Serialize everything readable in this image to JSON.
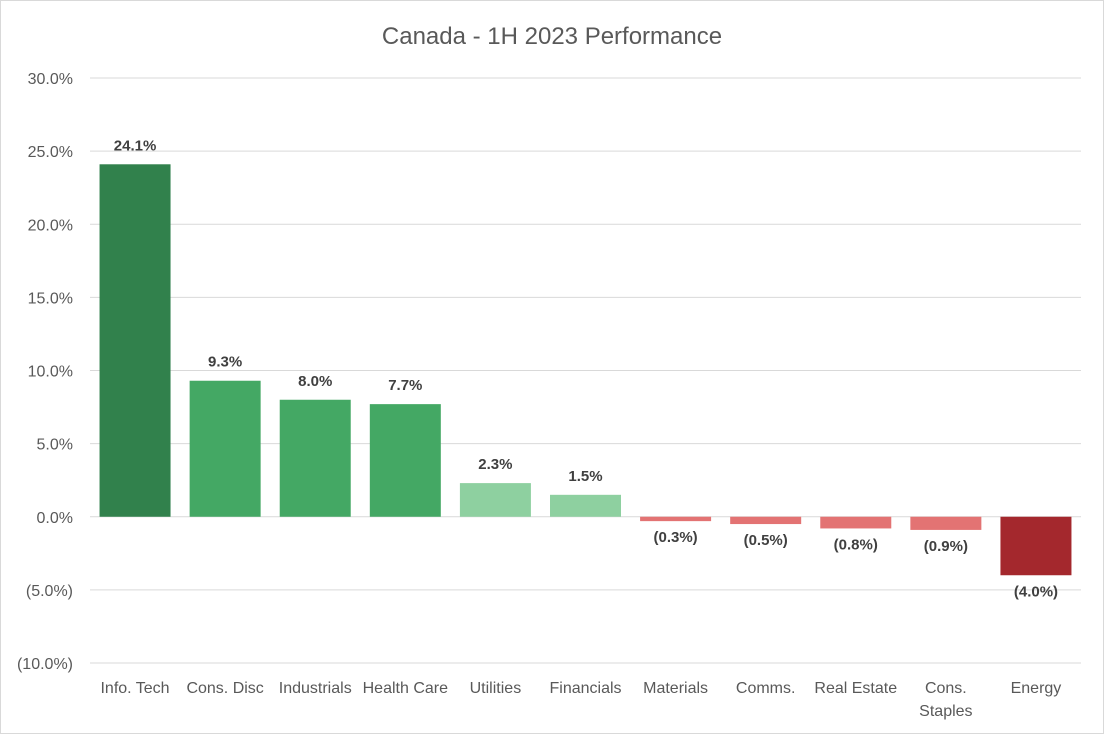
{
  "chart_data": {
    "type": "bar",
    "title": "Canada - 1H 2023 Performance",
    "xlabel": "",
    "ylabel": "",
    "ylim": [
      -10.0,
      30.0
    ],
    "ytick_step": 5.0,
    "yticks": [
      "(10.0%)",
      "(5.0%)",
      "0.0%",
      "5.0%",
      "10.0%",
      "15.0%",
      "20.0%",
      "25.0%",
      "30.0%"
    ],
    "grid": true,
    "legend": "none",
    "categories": [
      [
        "Info. Tech"
      ],
      [
        "Cons. Disc"
      ],
      [
        "Industrials"
      ],
      [
        "Health Care"
      ],
      [
        "Utilities"
      ],
      [
        "Financials"
      ],
      [
        "Materials"
      ],
      [
        "Comms."
      ],
      [
        "Real Estate"
      ],
      [
        "Cons.",
        "Staples"
      ],
      [
        "Energy"
      ]
    ],
    "values": [
      24.1,
      9.3,
      8.0,
      7.7,
      2.3,
      1.5,
      -0.3,
      -0.5,
      -0.8,
      -0.9,
      -4.0
    ],
    "data_labels": [
      "24.1%",
      "9.3%",
      "8.0%",
      "7.7%",
      "2.3%",
      "1.5%",
      "(0.3%)",
      "(0.5%)",
      "(0.8%)",
      "(0.9%)",
      "(4.0%)"
    ],
    "colors": [
      "#31814c",
      "#44a864",
      "#44a864",
      "#44a864",
      "#8ed0a0",
      "#8ed0a0",
      "#e37373",
      "#e37373",
      "#e37373",
      "#e37373",
      "#a4282d"
    ]
  }
}
